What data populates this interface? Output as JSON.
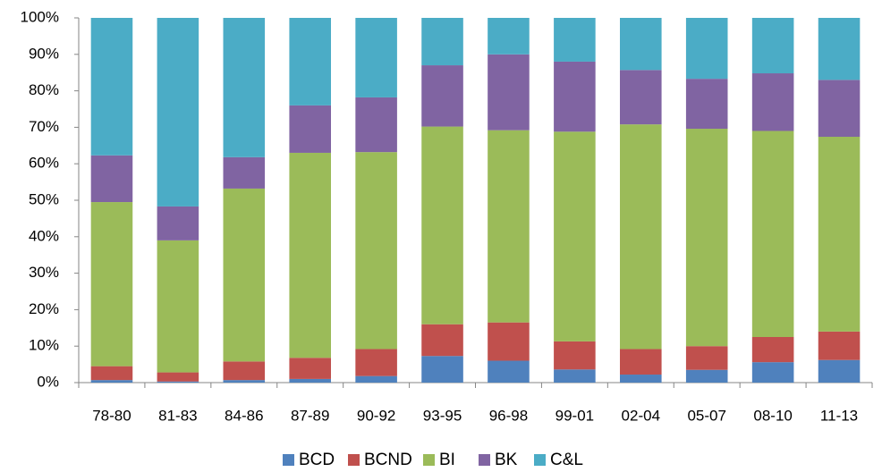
{
  "chart_data": {
    "type": "stacked_bar",
    "categories": [
      "78-80",
      "81-83",
      "84-86",
      "87-89",
      "90-92",
      "93-95",
      "96-98",
      "99-01",
      "02-04",
      "05-07",
      "08-10",
      "11-13"
    ],
    "series": [
      {
        "name": "BCD",
        "color": "#4f81bd",
        "values": [
          0.7,
          0.3,
          0.7,
          1.0,
          1.8,
          7.3,
          6.0,
          3.6,
          2.2,
          3.5,
          5.6,
          6.2
        ]
      },
      {
        "name": "BCND",
        "color": "#c0504d",
        "values": [
          3.8,
          2.5,
          5.1,
          5.8,
          7.4,
          8.7,
          10.5,
          7.7,
          7.0,
          6.5,
          6.9,
          7.8
        ]
      },
      {
        "name": "BI",
        "color": "#9bbb59",
        "values": [
          45.0,
          36.2,
          47.4,
          56.2,
          54.0,
          54.2,
          52.7,
          57.5,
          61.6,
          59.6,
          56.5,
          53.4
        ]
      },
      {
        "name": "BK",
        "color": "#8064a2",
        "values": [
          12.8,
          9.3,
          8.6,
          13.0,
          15.0,
          16.8,
          20.8,
          19.2,
          14.9,
          13.7,
          15.8,
          15.6
        ]
      },
      {
        "name": "C&L",
        "color": "#4bacc6",
        "values": [
          37.7,
          51.7,
          38.2,
          24.0,
          21.8,
          13.0,
          10.0,
          12.0,
          14.3,
          16.7,
          15.2,
          17.0
        ]
      }
    ],
    "ylim": [
      0,
      100
    ],
    "yticks": [
      {
        "value": 0,
        "label": "0%"
      },
      {
        "value": 10,
        "label": "10%"
      },
      {
        "value": 20,
        "label": "20%"
      },
      {
        "value": 30,
        "label": "30%"
      },
      {
        "value": 40,
        "label": "40%"
      },
      {
        "value": 50,
        "label": "50%"
      },
      {
        "value": 60,
        "label": "60%"
      },
      {
        "value": 70,
        "label": "70%"
      },
      {
        "value": 80,
        "label": "80%"
      },
      {
        "value": 90,
        "label": "90%"
      },
      {
        "value": 100,
        "label": "100%"
      }
    ],
    "grid": false,
    "legend": "bottom"
  }
}
